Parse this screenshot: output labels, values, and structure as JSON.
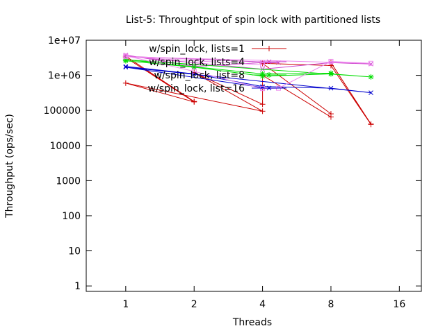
{
  "chart_data": {
    "type": "line",
    "title": "List-5: Throughtput of spin lock with partitioned lists",
    "xlabel": "Threads",
    "ylabel": "Throughput (ops/sec)",
    "x_scale": "log2",
    "y_scale": "log10",
    "xlim": [
      0.67,
      20
    ],
    "ylim": [
      0.7,
      10000000
    ],
    "x_ticks": [
      {
        "value": 1,
        "label": "1"
      },
      {
        "value": 2,
        "label": "2"
      },
      {
        "value": 4,
        "label": "4"
      },
      {
        "value": 8,
        "label": "8"
      },
      {
        "value": 16,
        "label": "16"
      }
    ],
    "y_ticks": [
      {
        "value": 1,
        "label": "1"
      },
      {
        "value": 10,
        "label": "10"
      },
      {
        "value": 100,
        "label": "100"
      },
      {
        "value": 1000,
        "label": "1000"
      },
      {
        "value": 10000,
        "label": "10000"
      },
      {
        "value": 100000,
        "label": "100000"
      },
      {
        "value": 1000000,
        "label": "1e+06"
      },
      {
        "value": 10000000,
        "label": "1e+07"
      }
    ],
    "grid": false,
    "legend_position": "top-left",
    "series": [
      {
        "name": "w/spin_lock, lists=1",
        "color": "#cc0000",
        "marker": "plus",
        "points": [
          [
            1,
            3500000
          ],
          [
            2,
            180000
          ],
          [
            1,
            3200000
          ],
          [
            2,
            175000
          ],
          [
            1,
            600000
          ],
          [
            4,
            95000
          ],
          [
            2,
            1200000
          ],
          [
            4,
            150000
          ],
          [
            4,
            1000000
          ],
          [
            8,
            65000
          ],
          [
            8,
            80000
          ],
          [
            4,
            2200000
          ],
          [
            8,
            1900000
          ],
          [
            12,
            40000
          ],
          [
            8,
            2300000
          ],
          [
            12,
            41000
          ]
        ]
      },
      {
        "name": "w/spin_lock, lists=4",
        "color": "#cc44cc",
        "marker": "x",
        "points": [
          [
            1,
            3800000
          ],
          [
            2,
            1800000
          ],
          [
            4,
            2300000
          ],
          [
            4.7,
            2300000
          ],
          [
            1,
            3500000
          ],
          [
            4,
            1500000
          ],
          [
            8,
            2300000
          ],
          [
            12,
            2100000
          ]
        ]
      },
      {
        "name": "w/spin_lock, list=8",
        "color": "#00dd00",
        "marker": "star",
        "points": [
          [
            1,
            2600000
          ],
          [
            2,
            1700000
          ],
          [
            4,
            950000
          ],
          [
            8,
            1100000
          ],
          [
            12,
            900000
          ],
          [
            1,
            2800000
          ],
          [
            4,
            1100000
          ],
          [
            8,
            1150000
          ]
        ]
      },
      {
        "name": "w/spin_lock, list=16",
        "color": "#0000cc",
        "marker": "x",
        "points": [
          [
            1,
            1800000
          ],
          [
            2,
            1100000
          ],
          [
            4,
            480000
          ],
          [
            8,
            430000
          ],
          [
            12,
            320000
          ],
          [
            1,
            1700000
          ],
          [
            4,
            450000
          ]
        ]
      },
      {
        "name": "",
        "color": "#ee88ee",
        "marker": "square",
        "points": [
          [
            1,
            3600000
          ],
          [
            2,
            1300000
          ],
          [
            4,
            420000
          ],
          [
            4.7,
            430000
          ],
          [
            8,
            2500000
          ],
          [
            12,
            2200000
          ],
          [
            1,
            3400000
          ],
          [
            4,
            2000000
          ]
        ]
      }
    ]
  }
}
